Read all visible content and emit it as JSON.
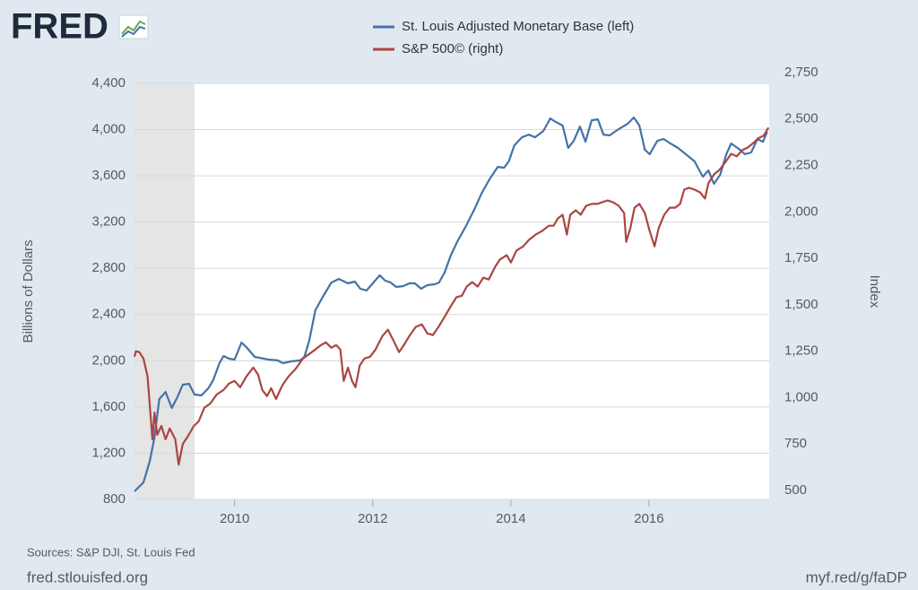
{
  "chart_data": {
    "type": "line",
    "logo": "FRED",
    "y_label": "Billions of Dollars",
    "y2_label": "Index",
    "source": "Sources: S&P DJI, St. Louis Fed",
    "site": "fred.stlouisfed.org",
    "short_link": "myf.red/g/faDP",
    "xlim": [
      2008.55,
      2017.74
    ],
    "xticks": [
      2010,
      2012,
      2014,
      2016
    ],
    "ylim": [
      800,
      4400
    ],
    "yticks": [
      800,
      {
        "value": 1200,
        "label": "1,200"
      },
      {
        "value": 1600,
        "label": "1,600"
      },
      {
        "value": 2000,
        "label": "2,000"
      },
      {
        "value": 2400,
        "label": "2,400"
      },
      {
        "value": 2800,
        "label": "2,800"
      },
      {
        "value": 3200,
        "label": "3,200"
      },
      {
        "value": 3600,
        "label": "3,600"
      },
      {
        "value": 4000,
        "label": "4,000"
      },
      {
        "value": 4400,
        "label": "4,400"
      }
    ],
    "y2lim": [
      452,
      2692
    ],
    "y2ticks": [
      500,
      750,
      {
        "value": 1000,
        "label": "1,000"
      },
      {
        "value": 1250,
        "label": "1,250"
      },
      {
        "value": 1500,
        "label": "1,500"
      },
      {
        "value": 1750,
        "label": "1,750"
      },
      {
        "value": 2000,
        "label": "2,000"
      },
      {
        "value": 2250,
        "label": "2,250"
      },
      {
        "value": 2500,
        "label": "2,500"
      },
      {
        "value": 2750,
        "label": "2,750"
      }
    ],
    "grid": true,
    "recessions": [
      [
        2008.55,
        2009.42
      ]
    ],
    "series": [
      {
        "name": "St. Louis Adjusted Monetary Base (left)",
        "color": "#4572a7",
        "axis": "y",
        "x": [
          2008.55,
          2008.68,
          2008.77,
          2008.84,
          2008.91,
          2009.0,
          2009.09,
          2009.17,
          2009.25,
          2009.34,
          2009.42,
          2009.52,
          2009.62,
          2009.69,
          2009.78,
          2009.84,
          2009.92,
          2010.0,
          2010.1,
          2010.18,
          2010.29,
          2010.49,
          2010.62,
          2010.7,
          2010.82,
          2010.95,
          2011.01,
          2011.08,
          2011.17,
          2011.27,
          2011.4,
          2011.51,
          2011.64,
          2011.74,
          2011.82,
          2011.91,
          2012.0,
          2012.1,
          2012.18,
          2012.26,
          2012.34,
          2012.44,
          2012.53,
          2012.61,
          2012.7,
          2012.79,
          2012.9,
          2012.96,
          2013.04,
          2013.13,
          2013.22,
          2013.35,
          2013.48,
          2013.58,
          2013.69,
          2013.81,
          2013.9,
          2013.97,
          2014.05,
          2014.16,
          2014.26,
          2014.35,
          2014.47,
          2014.57,
          2014.65,
          2014.75,
          2014.83,
          2014.91,
          2015.0,
          2015.08,
          2015.17,
          2015.26,
          2015.34,
          2015.43,
          2015.56,
          2015.69,
          2015.78,
          2015.86,
          2015.94,
          2016.01,
          2016.12,
          2016.21,
          2016.31,
          2016.42,
          2016.55,
          2016.66,
          2016.73,
          2016.78,
          2016.86,
          2016.94,
          2017.03,
          2017.12,
          2017.19,
          2017.3,
          2017.39,
          2017.48,
          2017.57,
          2017.65,
          2017.71
        ],
        "values": [
          870,
          947,
          1126,
          1335,
          1669,
          1730,
          1591,
          1684,
          1793,
          1800,
          1708,
          1700,
          1762,
          1832,
          1979,
          2041,
          2018,
          2010,
          2158,
          2111,
          2034,
          2010,
          2003,
          1979,
          1995,
          2003,
          2034,
          2173,
          2437,
          2546,
          2677,
          2708,
          2670,
          2685,
          2623,
          2608,
          2670,
          2739,
          2693,
          2677,
          2639,
          2646,
          2670,
          2670,
          2623,
          2654,
          2662,
          2677,
          2763,
          2910,
          3026,
          3166,
          3321,
          3453,
          3570,
          3678,
          3670,
          3725,
          3864,
          3934,
          3957,
          3934,
          3988,
          4097,
          4066,
          4035,
          3841,
          3903,
          4027,
          3895,
          4081,
          4089,
          3957,
          3950,
          4004,
          4050,
          4105,
          4035,
          3826,
          3787,
          3903,
          3919,
          3880,
          3841,
          3779,
          3725,
          3647,
          3593,
          3647,
          3531,
          3609,
          3787,
          3880,
          3834,
          3787,
          3803,
          3919,
          3895,
          3980
        ]
      },
      {
        "name": "S&P 500© (right)",
        "color": "#aa4643",
        "axis": "y2",
        "x": [
          2008.55,
          2008.57,
          2008.62,
          2008.68,
          2008.74,
          2008.78,
          2008.81,
          2008.84,
          2008.88,
          2008.94,
          2009.0,
          2009.06,
          2009.14,
          2009.19,
          2009.25,
          2009.32,
          2009.41,
          2009.48,
          2009.56,
          2009.65,
          2009.74,
          2009.84,
          2009.92,
          2010.0,
          2010.08,
          2010.17,
          2010.27,
          2010.34,
          2010.4,
          2010.47,
          2010.53,
          2010.6,
          2010.69,
          2010.78,
          2010.88,
          2010.99,
          2011.08,
          2011.17,
          2011.25,
          2011.32,
          2011.4,
          2011.47,
          2011.53,
          2011.58,
          2011.64,
          2011.7,
          2011.75,
          2011.81,
          2011.88,
          2011.96,
          2012.04,
          2012.14,
          2012.22,
          2012.3,
          2012.38,
          2012.45,
          2012.53,
          2012.62,
          2012.71,
          2012.79,
          2012.87,
          2012.95,
          2013.03,
          2013.12,
          2013.21,
          2013.29,
          2013.36,
          2013.44,
          2013.52,
          2013.6,
          2013.68,
          2013.77,
          2013.84,
          2013.94,
          2014.0,
          2014.08,
          2014.18,
          2014.26,
          2014.36,
          2014.45,
          2014.55,
          2014.62,
          2014.68,
          2014.75,
          2014.81,
          2014.86,
          2014.94,
          2015.01,
          2015.09,
          2015.17,
          2015.25,
          2015.32,
          2015.4,
          2015.48,
          2015.56,
          2015.64,
          2015.67,
          2015.73,
          2015.79,
          2015.86,
          2015.94,
          2016.01,
          2016.08,
          2016.14,
          2016.22,
          2016.3,
          2016.38,
          2016.45,
          2016.51,
          2016.58,
          2016.66,
          2016.74,
          2016.81,
          2016.86,
          2016.94,
          2017.02,
          2017.12,
          2017.19,
          2017.27,
          2017.35,
          2017.43,
          2017.51,
          2017.58,
          2017.66,
          2017.73
        ],
        "values": [
          1220,
          1250,
          1245,
          1211,
          1114,
          920,
          776,
          920,
          800,
          848,
          776,
          834,
          776,
          640,
          751,
          790,
          848,
          872,
          945,
          969,
          1017,
          1042,
          1076,
          1090,
          1056,
          1114,
          1162,
          1124,
          1042,
          1008,
          1051,
          993,
          1066,
          1114,
          1153,
          1211,
          1235,
          1259,
          1283,
          1298,
          1269,
          1283,
          1259,
          1090,
          1162,
          1090,
          1056,
          1172,
          1211,
          1220,
          1259,
          1332,
          1366,
          1308,
          1245,
          1283,
          1332,
          1380,
          1395,
          1346,
          1337,
          1380,
          1428,
          1486,
          1540,
          1549,
          1598,
          1622,
          1598,
          1646,
          1636,
          1704,
          1743,
          1767,
          1728,
          1791,
          1815,
          1849,
          1878,
          1897,
          1926,
          1926,
          1965,
          1985,
          1878,
          1985,
          2009,
          1985,
          2033,
          2043,
          2043,
          2052,
          2062,
          2052,
          2033,
          1994,
          1839,
          1912,
          2023,
          2043,
          1994,
          1897,
          1815,
          1912,
          1985,
          2023,
          2023,
          2043,
          2120,
          2130,
          2120,
          2105,
          2072,
          2154,
          2202,
          2226,
          2275,
          2313,
          2299,
          2333,
          2347,
          2371,
          2396,
          2410,
          2454
        ]
      }
    ]
  }
}
